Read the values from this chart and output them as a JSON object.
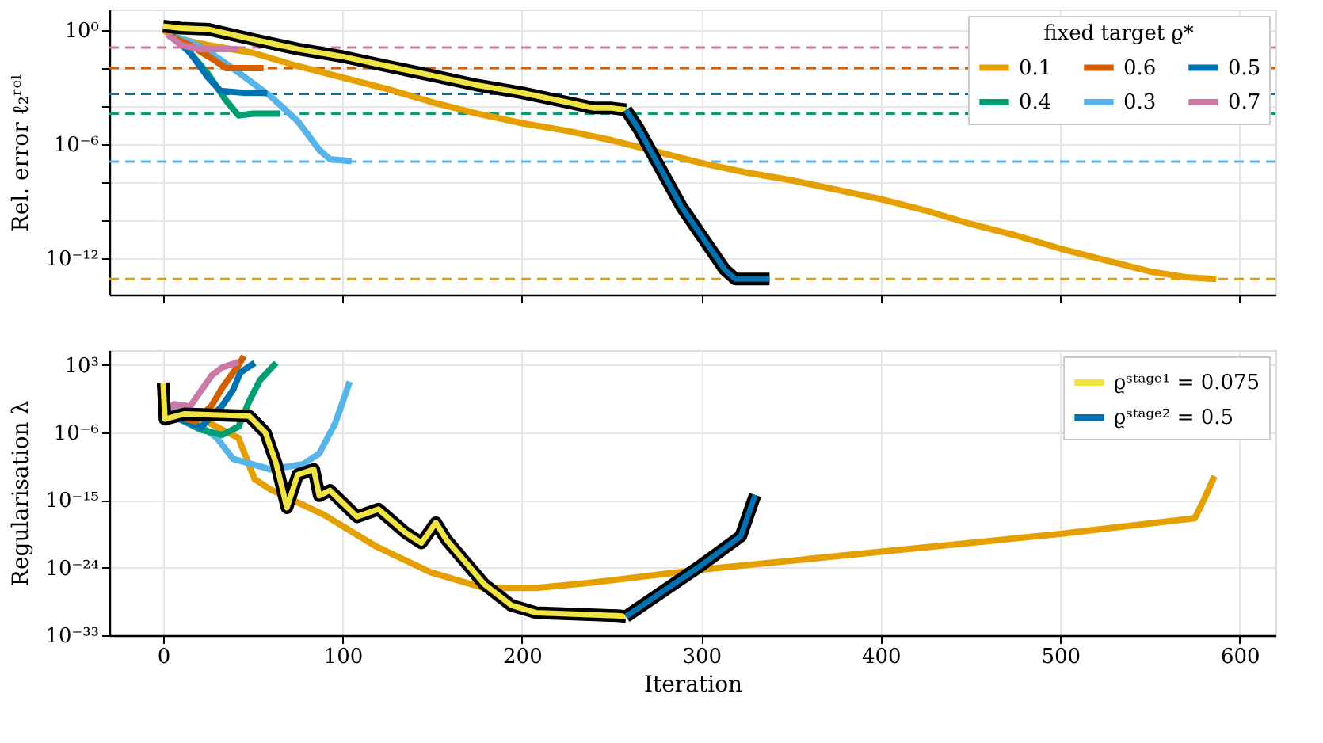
{
  "chart_data": [
    {
      "type": "line",
      "ylabel": "Rel. error ℓ₂ʳᵉˡ",
      "legend_title": "fixed target ϱ*",
      "legend": "top right",
      "grid": true,
      "log": "y",
      "tick_labels": "y",
      "line_style": "solid",
      "marker": "none",
      "xlim": [
        -30,
        620
      ],
      "xticks": [
        0,
        100,
        200,
        300,
        400,
        500,
        600
      ],
      "ylim": [
        1.2e-14,
        12
      ],
      "yticks": [
        {
          "value": 1,
          "label": "10⁰"
        },
        {
          "value": 0.01,
          "label": null
        },
        {
          "value": 0.0001,
          "label": null
        },
        {
          "value": 1e-06,
          "label": "10⁻⁶"
        },
        {
          "value": 1e-08,
          "label": null
        },
        {
          "value": 1e-10,
          "label": null
        },
        {
          "value": 1e-12,
          "label": "10⁻¹²"
        }
      ],
      "series": [
        {
          "name": "0.1",
          "color": "#e69f00",
          "x": [
            0,
            10,
            25,
            50,
            75,
            100,
            125,
            150,
            175,
            200,
            225,
            250,
            275,
            300,
            325,
            350,
            375,
            400,
            425,
            450,
            475,
            500,
            525,
            550,
            570,
            587
          ],
          "values": [
            1,
            0.32,
            0.16,
            0.063,
            0.0126,
            0.0032,
            0.00079,
            0.00016,
            4e-05,
            1.26e-05,
            5e-06,
            1.6e-06,
            4e-07,
            1e-07,
            3.2e-08,
            1.26e-08,
            4e-09,
            1.26e-09,
            3.2e-10,
            6.3e-11,
            1.6e-11,
            3.2e-12,
            7.9e-13,
            2e-13,
            1e-13,
            7.9e-14
          ]
        },
        {
          "name": "0.3",
          "color": "#56b4e9",
          "x": [
            5,
            15,
            25,
            40,
            60,
            75,
            87,
            93,
            105
          ],
          "values": [
            0.5,
            0.25,
            0.079,
            0.0079,
            0.00032,
            1.6e-05,
            5e-07,
            1.6e-07,
            1.26e-07
          ]
        },
        {
          "name": "0.4",
          "color": "#009e73",
          "x": [
            5,
            15,
            25,
            35,
            42,
            50,
            65
          ],
          "values": [
            0.5,
            0.063,
            0.005,
            0.0002,
            3.2e-05,
            4e-05,
            4e-05
          ]
        },
        {
          "name": "0.5",
          "color": "#0072b2",
          "x": [
            5,
            15,
            25,
            32,
            45,
            58
          ],
          "values": [
            0.5,
            0.063,
            0.0032,
            0.00063,
            0.0005,
            0.0005
          ]
        },
        {
          "name": "0.6",
          "color": "#d55e00",
          "x": [
            3,
            15,
            27,
            35,
            56
          ],
          "values": [
            0.5,
            0.16,
            0.032,
            0.01,
            0.01
          ]
        },
        {
          "name": "0.7",
          "color": "#cc79a7",
          "x": [
            2,
            10,
            20,
            42
          ],
          "values": [
            0.63,
            0.16,
            0.1,
            0.1
          ]
        },
        {
          "color": "#f0e442",
          "x": [
            0,
            10,
            25,
            50,
            75,
            100,
            125,
            150,
            175,
            200,
            225,
            240,
            250,
            258
          ],
          "values": [
            1.6,
            1.26,
            1.1,
            0.32,
            0.1,
            0.04,
            0.0126,
            0.004,
            0.00126,
            0.0005,
            0.00016,
            7.9e-05,
            7.9e-05,
            6.3e-05
          ]
        },
        {
          "color": "#0072b2",
          "x": [
            258,
            265,
            289,
            313,
            319,
            338
          ],
          "values": [
            6.3e-05,
            6.3e-06,
            5e-10,
            2.5e-13,
            7.9e-14,
            7.9e-14
          ]
        }
      ],
      "ref_lines": [
        {
          "axis": "y",
          "value": 7.9e-14,
          "color": "#e69f00",
          "line_style": "dashed"
        },
        {
          "axis": "y",
          "value": 1.2e-07,
          "color": "#56b4e9",
          "line_style": "dashed"
        },
        {
          "axis": "y",
          "value": 4e-05,
          "color": "#009e73",
          "line_style": "dashed"
        },
        {
          "axis": "y",
          "value": 0.00044,
          "color": "#0072b2",
          "line_style": "dashed"
        },
        {
          "axis": "y",
          "value": 0.01,
          "color": "#d55e00",
          "line_style": "dashed"
        },
        {
          "axis": "y",
          "value": 0.12,
          "color": "#cc79a7",
          "line_style": "dashed"
        }
      ]
    },
    {
      "type": "line",
      "xlabel": "Iteration",
      "ylabel": "Regularisation λ",
      "legend": "top right",
      "grid": true,
      "log": "y",
      "line_style": "solid",
      "marker": "none",
      "xlim": [
        -30,
        620
      ],
      "xticks": [
        0,
        100,
        200,
        300,
        400,
        500,
        600
      ],
      "ylim": [
        1e-33,
        100000.0
      ],
      "yticks": [
        {
          "value": 1000,
          "label": "10³"
        },
        {
          "value": 1e-06,
          "label": "10⁻⁶"
        },
        {
          "value": 1e-15,
          "label": "10⁻¹⁵"
        },
        {
          "value": 1e-24,
          "label": "10⁻²⁴"
        },
        {
          "value": 1e-33,
          "label": "10⁻³³"
        }
      ],
      "series": [
        {
          "color": "#e69f00",
          "x": [
            0,
            20,
            42,
            51,
            60,
            90,
            119,
            149,
            179,
            208,
            238,
            298,
            399,
            500,
            575,
            580,
            586
          ],
          "values": [
            0.00032,
            0.0001,
            2e-07,
            6.3e-13,
            2.5e-14,
            1e-17,
            6.3e-22,
            2.5e-25,
            2e-27,
            2e-27,
            1e-26,
            5e-25,
            1.26e-22,
            3.2e-20,
            4e-18,
            1e-15,
            1.6e-12
          ]
        },
        {
          "color": "#56b4e9",
          "x": [
            6,
            30,
            39,
            60,
            78,
            87,
            96,
            104
          ],
          "values": [
            0.0032,
            2e-07,
            3.2e-10,
            1.26e-11,
            6.3e-11,
            1.6e-09,
            2e-05,
            6.3
          ]
        },
        {
          "color": "#009e73",
          "x": [
            3,
            21,
            33,
            42,
            48,
            54,
            63
          ],
          "values": [
            0.00032,
            2.5e-06,
            5e-07,
            6.3e-06,
            0.016,
            10,
            2000
          ]
        },
        {
          "color": "#0072b2",
          "x": [
            3,
            21,
            33,
            39,
            43,
            51
          ],
          "values": [
            0.00032,
            5e-06,
            0.004,
            0.5,
            100,
            2000
          ]
        },
        {
          "color": "#d55e00",
          "x": [
            3,
            18,
            27,
            33,
            42,
            45
          ],
          "values": [
            0.00032,
            3.2e-05,
            0.004,
            1,
            1000,
            16000
          ]
        },
        {
          "color": "#cc79a7",
          "x": [
            3,
            6,
            15,
            27,
            33,
            42
          ],
          "values": [
            0.00032,
            0.0063,
            0.0032,
            40,
            500,
            2500
          ]
        },
        {
          "name": "ϱˢᵗᵃᵍᵉ¹ = 0.075",
          "color": "#f0e442",
          "x": [
            0,
            1,
            12,
            48,
            57,
            63,
            69,
            75,
            84,
            87,
            93,
            108,
            120,
            135,
            144,
            152,
            158,
            179,
            194,
            208,
            253,
            258
          ],
          "values": [
            4.5,
            6.3e-05,
            0.00032,
            0.00016,
            1e-06,
            7.9e-11,
            1e-16,
            2.5e-12,
            1.26e-11,
            4e-15,
            2e-14,
            6.3e-18,
            6.3e-17,
            5e-20,
            2e-21,
            1e-18,
            5e-21,
            6.3e-27,
            1e-29,
            1e-30,
            4e-31,
            3.2e-31
          ]
        },
        {
          "name": "ϱˢᵗᵃᵍᵉ² = 0.5",
          "color": "#0072b2",
          "x": [
            258,
            298,
            322,
            330
          ],
          "values": [
            3.2e-31,
            1e-24,
            1.6e-20,
            5e-15
          ]
        }
      ]
    }
  ]
}
